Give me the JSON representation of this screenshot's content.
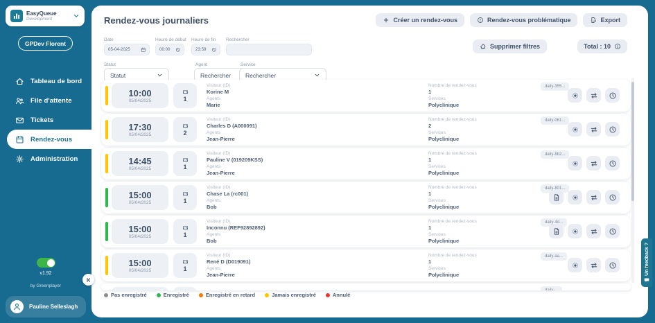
{
  "app": {
    "name": "EasyQueue",
    "environment": "Development",
    "org": "GPDev Florent",
    "version": "v1.92",
    "credit": "by Greenplayer",
    "user": "Pauline Selleslagh"
  },
  "sidebar": {
    "nav": [
      {
        "label": "Tableau de bord",
        "icon": "home-icon",
        "active": false
      },
      {
        "label": "File d'attente",
        "icon": "queue-icon",
        "active": false
      },
      {
        "label": "Tickets",
        "icon": "envelope-icon",
        "active": false
      },
      {
        "label": "Rendez-vous",
        "icon": "calendar-icon",
        "active": true
      },
      {
        "label": "Administration",
        "icon": "gear-icon",
        "active": false
      }
    ]
  },
  "header": {
    "title": "Rendez-vous journaliers",
    "actions": [
      {
        "label": "Créer un rendez-vous",
        "icon": "plus-icon"
      },
      {
        "label": "Rendez-vous problématique",
        "icon": "alert-icon"
      },
      {
        "label": "Export",
        "icon": "export-icon"
      }
    ]
  },
  "filters": {
    "date_label": "Date",
    "date_value": "05-04-2025",
    "start_label": "Heure de début",
    "start_value": "00:00",
    "end_label": "Heure de fin",
    "end_value": "23:59",
    "search_label": "Rechercher",
    "search_value": "",
    "status_label": "Statut",
    "status_value": "Statut",
    "agent_label": "Agent",
    "agent_value": "Rechercher",
    "service_label": "Service",
    "service_value": "Rechercher",
    "clear_label": "Supprimer filtres",
    "total_label": "Total : 10"
  },
  "list": {
    "labels": {
      "visitor": "Visiteur (ID)",
      "agents": "Agents",
      "count": "Nombre de rendez-vous",
      "services": "Services"
    },
    "rows": [
      {
        "time": "10:00",
        "date": "05/04/2025",
        "tickets": "1",
        "visitor": "Korine M",
        "agent": "Marie",
        "count": "1",
        "service": "Polyclinique",
        "badge": "daily-355...",
        "status": "jamais_enregistre",
        "doc": false
      },
      {
        "time": "17:30",
        "date": "05/04/2025",
        "tickets": "2",
        "visitor": "Charles D (A000091)",
        "agent": "Jean-Pierre",
        "count": "2",
        "service": "Polyclinique",
        "badge": "daily-061...",
        "status": "jamais_enregistre",
        "doc": false
      },
      {
        "time": "14:45",
        "date": "05/04/2025",
        "tickets": "1",
        "visitor": "Pauline V (019209KSS)",
        "agent": "Jean-Pierre",
        "count": "1",
        "service": "Polyclinique",
        "badge": "daily-8b2...",
        "status": "jamais_enregistre",
        "doc": false
      },
      {
        "time": "15:00",
        "date": "05/04/2025",
        "tickets": "1",
        "visitor": "Chase La (rc001)",
        "agent": "Bob",
        "count": "1",
        "service": "Polyclinique",
        "badge": "daily-801...",
        "status": "enregistre",
        "doc": true
      },
      {
        "time": "15:00",
        "date": "05/04/2025",
        "tickets": "1",
        "visitor": "Inconnu (REF92892892)",
        "agent": "Bob",
        "count": "1",
        "service": "Polyclinique",
        "badge": "daily-4d...",
        "status": "enregistre",
        "doc": true
      },
      {
        "time": "15:00",
        "date": "05/04/2025",
        "tickets": "1",
        "visitor": "René D (D019091)",
        "agent": "Jean-Pierre",
        "count": "1",
        "service": "Polyclinique",
        "badge": "daily-aa...",
        "status": "jamais_enregistre",
        "doc": false
      }
    ],
    "partial_badge": "daily-..."
  },
  "legend": [
    {
      "label": "Pas enregistré",
      "color": "#8e8e8e"
    },
    {
      "label": "Enregistré",
      "color": "#2db84c"
    },
    {
      "label": "Enregistré en retard",
      "color": "#f57c00"
    },
    {
      "label": "Jamais enregistré",
      "color": "#fdc500"
    },
    {
      "label": "Annulé",
      "color": "#e53935"
    }
  ],
  "status_colors": {
    "jamais_enregistre": "#fdc500",
    "enregistre": "#2db84c"
  },
  "feedback": "Un feedback ?",
  "colors": {
    "brand": "#186b90",
    "toggle_on": "#3db549"
  }
}
